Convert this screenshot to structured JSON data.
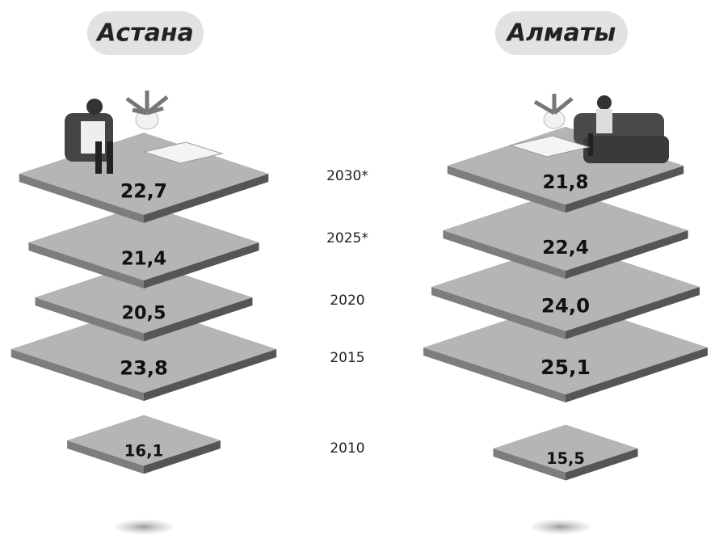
{
  "chart_data": {
    "type": "pictorial",
    "categories": [
      "2010",
      "2015",
      "2020",
      "2025*",
      "2030*"
    ],
    "series": [
      {
        "name": "Астана",
        "color": "#b5b5b5",
        "values": [
          16.1,
          23.8,
          20.5,
          21.4,
          22.7
        ],
        "value_labels": [
          "16,1",
          "23,8",
          "20,5",
          "21,4",
          "22,7"
        ]
      },
      {
        "name": "Алматы",
        "color": "#b5b5b5",
        "values": [
          15.5,
          25.1,
          24.0,
          22.4,
          21.8
        ],
        "value_labels": [
          "15,5",
          "25,1",
          "24,0",
          "22,4",
          "21,8"
        ]
      }
    ]
  }
}
